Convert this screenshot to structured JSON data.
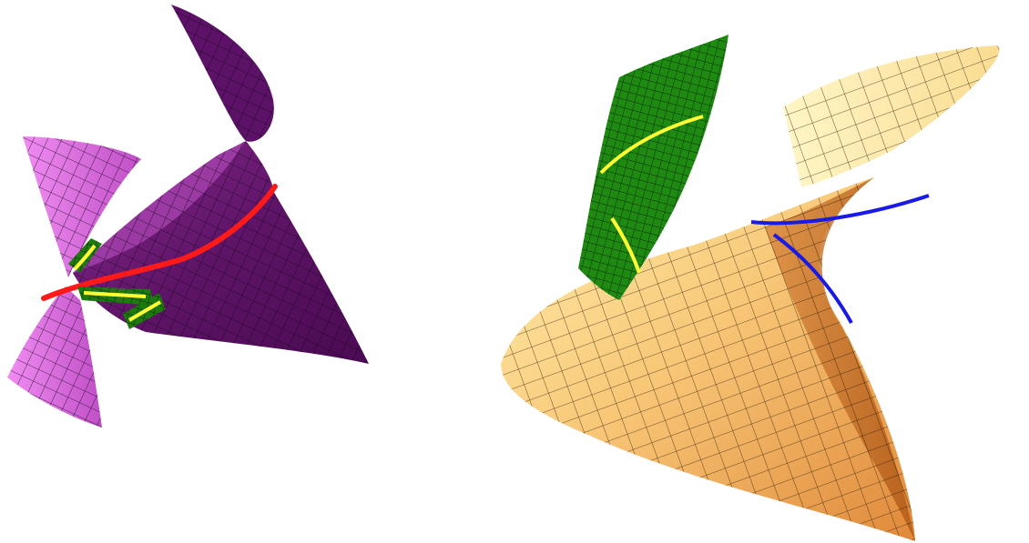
{
  "figures": [
    {
      "name": "purple-surface",
      "colors": {
        "light": "#e56ee8",
        "mid": "#a23aa8",
        "dark": "#5a0f63",
        "grid": "#1a0620",
        "curve": "#ff1a1a",
        "strip": "#1e7a10",
        "strip_curve": "#ffff33"
      }
    },
    {
      "name": "orange-surface",
      "colors": {
        "light": "#fff3b0",
        "mid": "#f5c06a",
        "dark": "#c56a1e",
        "grid": "#2b1a08",
        "curve": "#1a1ae6",
        "strip": "#1f8a12",
        "strip_curve": "#ffff33"
      }
    }
  ]
}
